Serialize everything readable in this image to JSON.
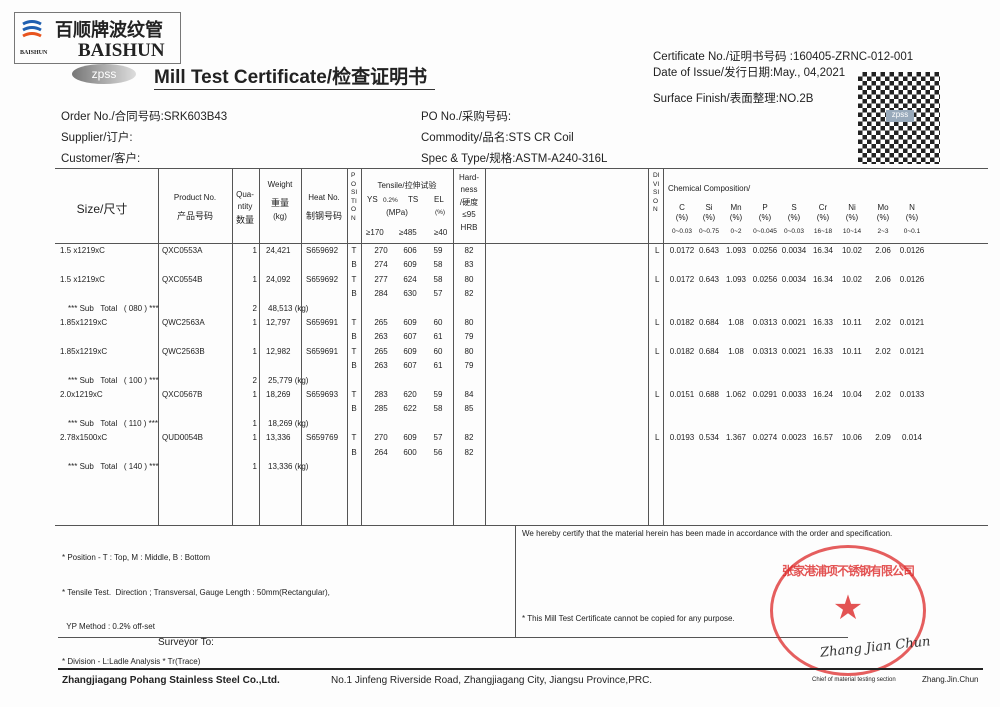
{
  "logo": {
    "cn": "百顺牌波纹管",
    "small": "BAISHUN",
    "en": "BAISHUN",
    "zpss": "zpss"
  },
  "title": "Mill Test Certificate/检查证明书",
  "cert": {
    "no": "Certificate No./证明书号码 :160405-ZRNC-012-001",
    "date": "Date of Issue/发行日期:May., 04,2021",
    "finish": "Surface Finish/表面整理:NO.2B"
  },
  "info": {
    "order": "Order No./合同号码:SRK603B43",
    "supplier": "Supplier/订户:",
    "customer": "Customer/客户:",
    "po": "PO No./采购号码:",
    "commodity": "Commodity/品名:STS CR Coil",
    "spec": "Spec & Type/规格:ASTM-A240-316L"
  },
  "head": {
    "size": "Size/尺寸",
    "product_en": "Product No.",
    "product_cn": "产品号码",
    "qty1": "Qua-",
    "qty2": "ntity",
    "qty3": "数量",
    "w1": "Weight",
    "w2": "重量",
    "w3": "(kg)",
    "heat1": "Heat No.",
    "heat2": "制钢号码",
    "position": "POSITION",
    "tensile": "Tensile/拉伸试验",
    "ys": "YS",
    "ys02": "0.2%",
    "ts": "TS",
    "el": "EL",
    "mpa": "(MPa)",
    "pct": "(%)",
    "ys_min": "≥170",
    "ts_min": "≥485",
    "el_min": "≥40",
    "h1": "Hard-",
    "h2": "ness",
    "h3": "/硬度",
    "h4": "≤95",
    "h5": "HRB",
    "division": "DIVISION",
    "chem": "Chemical Composition/",
    "unit": "(%)",
    "elements": [
      "C",
      "Si",
      "Mn",
      "P",
      "S",
      "Cr",
      "Ni",
      "Mo",
      "N"
    ],
    "ranges": [
      "0~0.03",
      "0~0.75",
      "0~2",
      "0~0.045",
      "0~0.03",
      "16~18",
      "10~14",
      "2~3",
      "0~0.1"
    ]
  },
  "rows": [
    {
      "type": "item",
      "size": "1.5 x1219xC",
      "product": "QXC0553A",
      "qty": "1",
      "weight": "24,421",
      "heat": "S659692",
      "tests": [
        [
          "T",
          "270",
          "606",
          "59",
          "82"
        ],
        [
          "B",
          "274",
          "609",
          "58",
          "83"
        ]
      ],
      "div": "L",
      "chem": [
        "0.0172",
        "0.643",
        "1.093",
        "0.0256",
        "0.0034",
        "16.34",
        "10.02",
        "2.06",
        "0.0126"
      ]
    },
    {
      "type": "item",
      "size": "1.5 x1219xC",
      "product": "QXC0554B",
      "qty": "1",
      "weight": "24,092",
      "heat": "S659692",
      "tests": [
        [
          "T",
          "277",
          "624",
          "58",
          "80"
        ],
        [
          "B",
          "284",
          "630",
          "57",
          "82"
        ]
      ],
      "div": "L",
      "chem": [
        "0.0172",
        "0.643",
        "1.093",
        "0.0256",
        "0.0034",
        "16.34",
        "10.02",
        "2.06",
        "0.0126"
      ]
    },
    {
      "type": "sub",
      "label": "*** Sub   Total   ( 080 ) ***",
      "qty": "2",
      "weight": "48,513 (kg)"
    },
    {
      "type": "item",
      "size": "1.85x1219xC",
      "product": "QWC2563A",
      "qty": "1",
      "weight": "12,797",
      "heat": "S659691",
      "tests": [
        [
          "T",
          "265",
          "609",
          "60",
          "80"
        ],
        [
          "B",
          "263",
          "607",
          "61",
          "79"
        ]
      ],
      "div": "L",
      "chem": [
        "0.0182",
        "0.684",
        "1.08",
        "0.0313",
        "0.0021",
        "16.33",
        "10.11",
        "2.02",
        "0.0121"
      ]
    },
    {
      "type": "item",
      "size": "1.85x1219xC",
      "product": "QWC2563B",
      "qty": "1",
      "weight": "12,982",
      "heat": "S659691",
      "tests": [
        [
          "T",
          "265",
          "609",
          "60",
          "80"
        ],
        [
          "B",
          "263",
          "607",
          "61",
          "79"
        ]
      ],
      "div": "L",
      "chem": [
        "0.0182",
        "0.684",
        "1.08",
        "0.0313",
        "0.0021",
        "16.33",
        "10.11",
        "2.02",
        "0.0121"
      ]
    },
    {
      "type": "sub",
      "label": "*** Sub   Total   ( 100 ) ***",
      "qty": "2",
      "weight": "25,779 (kg)"
    },
    {
      "type": "item",
      "size": "2.0x1219xC",
      "product": "QXC0567B",
      "qty": "1",
      "weight": "18,269",
      "heat": "S659693",
      "tests": [
        [
          "T",
          "283",
          "620",
          "59",
          "84"
        ],
        [
          "B",
          "285",
          "622",
          "58",
          "85"
        ]
      ],
      "div": "L",
      "chem": [
        "0.0151",
        "0.688",
        "1.062",
        "0.0291",
        "0.0033",
        "16.24",
        "10.04",
        "2.02",
        "0.0133"
      ]
    },
    {
      "type": "sub",
      "label": "*** Sub   Total   ( 110 ) ***",
      "qty": "1",
      "weight": "18,269 (kg)"
    },
    {
      "type": "item",
      "size": "2.78x1500xC",
      "product": "QUD0054B",
      "qty": "1",
      "weight": "13,336",
      "heat": "S659769",
      "tests": [
        [
          "T",
          "270",
          "609",
          "57",
          "82"
        ],
        [
          "B",
          "264",
          "600",
          "56",
          "82"
        ]
      ],
      "div": "L",
      "chem": [
        "0.0193",
        "0.534",
        "1.367",
        "0.0274",
        "0.0023",
        "16.57",
        "10.06",
        "2.09",
        "0.014"
      ]
    },
    {
      "type": "sub",
      "label": "*** Sub   Total   ( 140 ) ***",
      "qty": "1",
      "weight": "13,336 (kg)"
    }
  ],
  "notes": [
    "* Position - T : Top, M : Middle, B : Bottom",
    "* Tensile Test.  Direction ; Transversal, Gauge Length : 50mm(Rectangular),",
    "  YP Method : 0.2% off-set",
    "* Division - L:Ladle Analysis * Tr(Trace)"
  ],
  "certify": "We hereby certify that the material herein has been made in accordance with the order and specification.",
  "nocopy": "* This Mill Test Certificate cannot be copied for any purpose.",
  "surveyor": "Surveyor To:",
  "stamp": "张家港浦项不锈钢有限公司",
  "signature": "Zhang Jian Chun",
  "footer": {
    "company": "Zhangjiagang Pohang Stainless Steel Co.,Ltd.",
    "address": "No.1 Jinfeng Riverside Road, Zhangjiagang City, Jiangsu Province,PRC.",
    "chief": "Chief of material testing section",
    "name": "Zhang.Jin.Chun"
  },
  "colors": {
    "stamp": "#dc2828",
    "logo_blue": "#1f5fb0",
    "logo_orange": "#e8541e"
  }
}
